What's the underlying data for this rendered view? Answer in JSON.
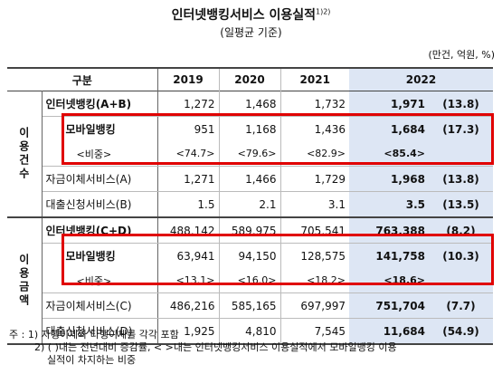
{
  "title": "인터넷뱅킹서비스 이용실적",
  "title_sup": "1)2)",
  "subtitle": "(일평균 기준)",
  "unit": "(만건, 억원, %)",
  "header": {
    "gubun": "구분",
    "y2019": "2019",
    "y2020": "2020",
    "y2021": "2021",
    "y2022": "2022"
  },
  "section1": {
    "label": "이용건수",
    "rows": [
      {
        "name": "인터넷뱅킹(A+B)",
        "v2019": "1,272",
        "v2020": "1,468",
        "v2021": "1,732",
        "v2022": "1,971",
        "chg": "(13.8)"
      },
      {
        "name": "모바일뱅킹",
        "v2019": "951",
        "v2020": "1,168",
        "v2021": "1,436",
        "v2022": "1,684",
        "chg": "(17.3)"
      },
      {
        "name": "<비중>",
        "v2019": "<74.7>",
        "v2020": "<79.6>",
        "v2021": "<82.9>",
        "v2022": "<85.4>",
        "chg": ""
      },
      {
        "name": "자금이체서비스(A)",
        "v2019": "1,271",
        "v2020": "1,466",
        "v2021": "1,729",
        "v2022": "1,968",
        "chg": "(13.8)"
      },
      {
        "name": "대출신청서비스(B)",
        "v2019": "1.5",
        "v2020": "2.1",
        "v2021": "3.1",
        "v2022": "3.5",
        "chg": "(13.5)"
      }
    ]
  },
  "section2": {
    "label": "이용금액",
    "rows": [
      {
        "name": "인터넷뱅킹(C+D)",
        "v2019": "488,142",
        "v2020": "589,975",
        "v2021": "705,541",
        "v2022": "763,388",
        "chg": "(8.2)"
      },
      {
        "name": "모바일뱅킹",
        "v2019": "63,941",
        "v2020": "94,150",
        "v2021": "128,575",
        "v2022": "141,758",
        "chg": "(10.3)"
      },
      {
        "name": "<비중>",
        "v2019": "<13.1>",
        "v2020": "<16.0>",
        "v2021": "<18.2>",
        "v2022": "<18.6>",
        "chg": ""
      },
      {
        "name": "자금이체서비스(C)",
        "v2019": "486,216",
        "v2020": "585,165",
        "v2021": "697,997",
        "v2022": "751,704",
        "chg": "(7.7)"
      },
      {
        "name": "대출신청서비스(D)",
        "v2019": "1,925",
        "v2020": "4,810",
        "v2021": "7,545",
        "v2022": "11,684",
        "chg": "(54.9)"
      }
    ]
  },
  "notes": {
    "n1": "주 : 1) 자행이체와 타행이체를 각각 포함",
    "n2": "2) ( )내는 전년대비 증감률, <   >내는 인터넷뱅킹서비스 이용실적에서 모바일뱅킹 이용",
    "n3": "실적이 차지하는 비중"
  },
  "colors": {
    "highlight_col": "#dde6f4",
    "emphasis_box": "#e00000"
  }
}
